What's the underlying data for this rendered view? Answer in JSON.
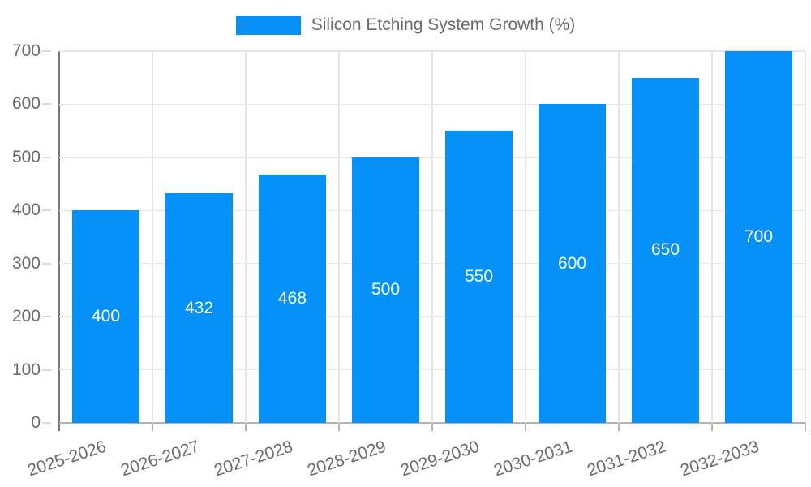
{
  "legend": {
    "label": "Silicon Etching System Growth (%)"
  },
  "chart_data": {
    "type": "bar",
    "title": "",
    "legend_position": "top",
    "series_name": "Silicon Etching System Growth (%)",
    "categories": [
      "2025-2026",
      "2026-2027",
      "2027-2028",
      "2028-2029",
      "2029-2030",
      "2030-2031",
      "2031-2032",
      "2032-2033"
    ],
    "values": [
      400,
      432,
      468,
      500,
      550,
      600,
      650,
      700
    ],
    "value_labels": [
      "400",
      "432",
      "468",
      "500",
      "550",
      "600",
      "650",
      "700"
    ],
    "ylim": [
      0,
      700
    ],
    "ytick_step": 100,
    "ytick_labels": [
      "0",
      "100",
      "200",
      "300",
      "400",
      "500",
      "600",
      "700"
    ],
    "grid": true,
    "x_label_rotation_deg": -18,
    "colors": {
      "bar": "#0691f8",
      "value_label": "#ffffff",
      "axis_text": "#6b6b6b",
      "gridline": "#e6e6e6",
      "y_axis_line": "#787878",
      "x_baseline": "#b3b3b3",
      "x_tick": "#b3b3b3",
      "y_tick": "#d9d9d9"
    }
  }
}
